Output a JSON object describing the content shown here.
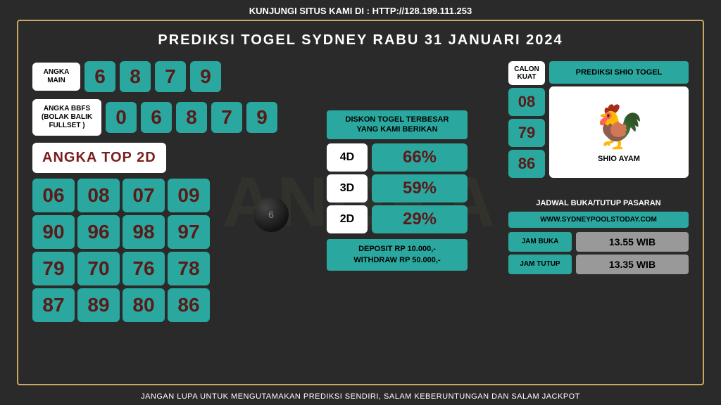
{
  "top_banner": "KUNJUNGI SITUS KAMI DI : HTTP://128.199.111.253",
  "title": "PREDIKSI TOGEL SYDNEY RABU 31 JANUARI 2024",
  "angka_main": {
    "label": "ANGKA MAIN",
    "nums": [
      "6",
      "8",
      "7",
      "9"
    ]
  },
  "bbfs": {
    "label": "ANGKA BBFS (BOLAK BALIK FULLSET )",
    "nums": [
      "0",
      "6",
      "8",
      "7",
      "9"
    ]
  },
  "top2d": {
    "header": "ANGKA TOP 2D",
    "cells": [
      "06",
      "08",
      "07",
      "09",
      "90",
      "96",
      "98",
      "97",
      "79",
      "70",
      "76",
      "78",
      "87",
      "89",
      "80",
      "86"
    ]
  },
  "diskon": {
    "label_l1": "DISKON TOGEL TERBESAR",
    "label_l2": "YANG KAMI BERIKAN",
    "rows": [
      {
        "tag": "4D",
        "val": "66%"
      },
      {
        "tag": "3D",
        "val": "59%"
      },
      {
        "tag": "2D",
        "val": "29%"
      }
    ],
    "deposit_l1": "DEPOSIT RP 10.000,-",
    "deposit_l2": "WITHDRAW RP 50.000,-"
  },
  "calon": {
    "label": "CALON KUAT",
    "nums": [
      "08",
      "79",
      "86"
    ]
  },
  "shio": {
    "header": "PREDIKSI SHIO TOGEL",
    "name": "SHIO AYAM"
  },
  "jadwal": {
    "title": "JADWAL BUKA/TUTUP PASARAN",
    "site": "WWW.SYDNEYPOOLSTODAY.COM",
    "rows": [
      {
        "tag": "JAM BUKA",
        "val": "13.55 WIB"
      },
      {
        "tag": "JAM TUTUP",
        "val": "13.35 WIB"
      }
    ]
  },
  "bottom_banner": "JANGAN LUPA UNTUK MENGUTAMAKAN PREDIKSI SENDIRI, SALAM KEBERUNTUNGAN DAN SALAM JACKPOT",
  "colors": {
    "teal": "#2aa89f",
    "dark_red": "#5a1a1a",
    "gold": "#c9a961",
    "bg": "#2a2a2a"
  }
}
